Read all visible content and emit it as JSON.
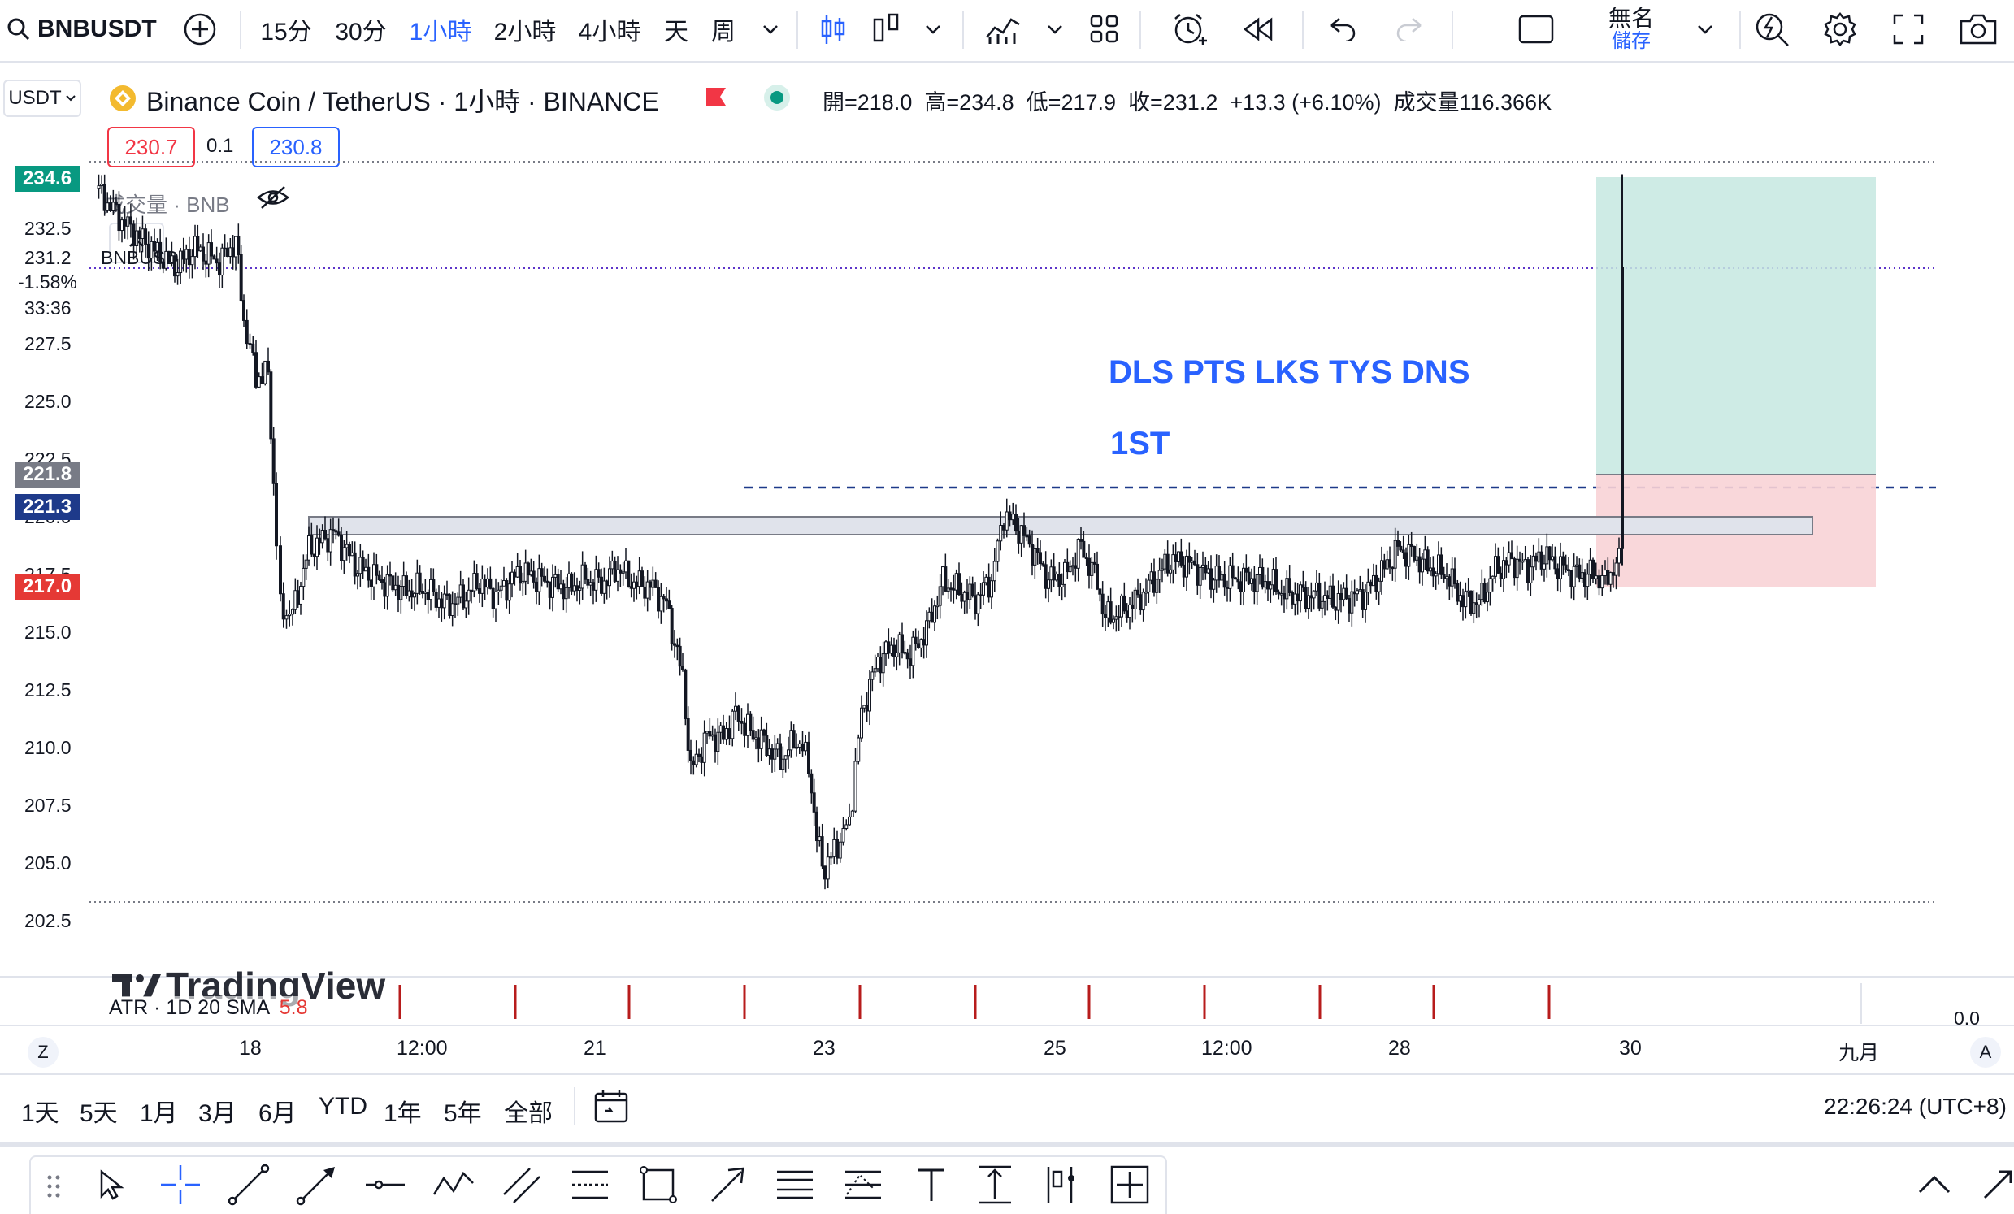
{
  "toolbar": {
    "symbol": "BNBUSDT",
    "intervals": [
      "15分",
      "30分",
      "1小時",
      "2小時",
      "4小時",
      "天",
      "周"
    ],
    "active_interval": "1小時",
    "layout_name": "無名",
    "save_label": "儲存"
  },
  "legend": {
    "currency": "USDT",
    "title": "Binance Coin / TetherUS · 1小時 · BINANCE",
    "ohlc": "開=218.0  高=234.8  低=217.9  收=231.2  +13.3 (+6.10%)  成交量116.366K",
    "sell_price": "230.7",
    "spread": "0.1",
    "buy_price": "230.8",
    "volume_label": "成交量 · BNB",
    "symbol_small": "BNBUSDT"
  },
  "price_axis": {
    "labels": [
      "232.5",
      "227.5",
      "225.0",
      "222.5",
      "220.0",
      "217.5",
      "215.0",
      "212.5",
      "210.0",
      "207.5",
      "205.0",
      "202.5"
    ],
    "tags": [
      {
        "value": "234.6",
        "color": "#089981"
      },
      {
        "value": "231.2",
        "color": "#ffffff"
      },
      {
        "value": "221.8",
        "color": "#787b86"
      },
      {
        "value": "221.3",
        "color": "#1e3a8a"
      },
      {
        "value": "217.0",
        "color": "#e53935"
      }
    ],
    "current_change": "-1.58%",
    "countdown": "33:36"
  },
  "annotations": {
    "text1": "DLS PTS LKS TYS DNS",
    "text2": "1ST"
  },
  "indicator": {
    "label": "ATR · 1D 20 SMA",
    "value": "5.8",
    "zero": "0.0",
    "watermark": "TradingView"
  },
  "time_axis": {
    "labels": [
      "18",
      "12:00",
      "21",
      "23",
      "25",
      "12:00",
      "28",
      "30",
      "九月"
    ],
    "left_btn": "Z",
    "right_btn": "A"
  },
  "ranges": [
    "1天",
    "5天",
    "1月",
    "3月",
    "6月",
    "YTD",
    "1年",
    "5年",
    "全部"
  ],
  "clock": "22:26:24 (UTC+8)",
  "colors": {
    "accent": "#2962ff",
    "up_zone": "#c6e8e0",
    "down_zone": "#f8d3d6",
    "annotation_text": "#2962ff"
  }
}
